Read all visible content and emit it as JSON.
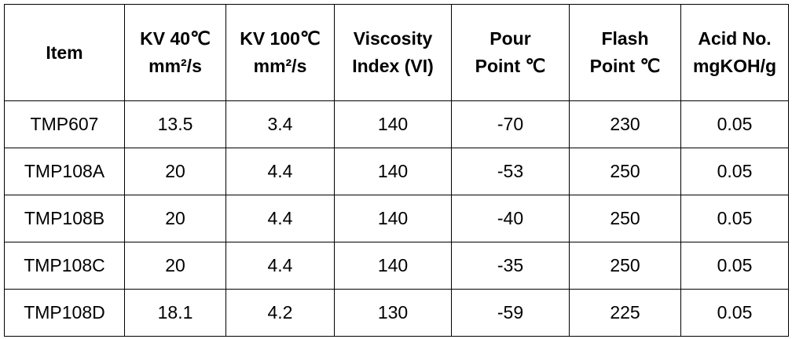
{
  "table": {
    "headers": [
      [
        "Item"
      ],
      [
        "KV 40℃",
        "mm²/s"
      ],
      [
        "KV 100℃",
        "mm²/s"
      ],
      [
        "Viscosity",
        "Index (VI)"
      ],
      [
        "Pour",
        "Point ℃"
      ],
      [
        "Flash",
        "Point ℃"
      ],
      [
        "Acid No.",
        "mgKOH/g"
      ]
    ],
    "rows": [
      [
        "TMP607",
        "13.5",
        "3.4",
        "140",
        "-70",
        "230",
        "0.05"
      ],
      [
        "TMP108A",
        "20",
        "4.4",
        "140",
        "-53",
        "250",
        "0.05"
      ],
      [
        "TMP108B",
        "20",
        "4.4",
        "140",
        "-40",
        "250",
        "0.05"
      ],
      [
        "TMP108C",
        "20",
        "4.4",
        "140",
        "-35",
        "250",
        "0.05"
      ],
      [
        "TMP108D",
        "18.1",
        "4.2",
        "130",
        "-59",
        "225",
        "0.05"
      ]
    ]
  }
}
